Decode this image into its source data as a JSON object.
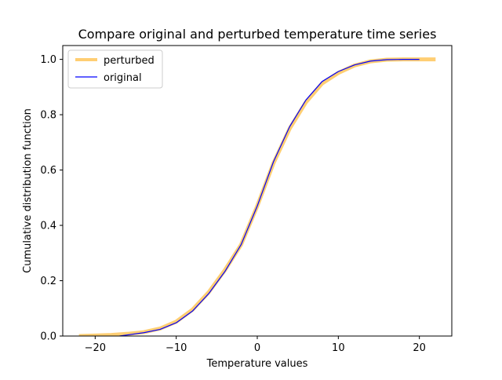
{
  "chart_data": {
    "type": "line",
    "title": "Compare original and perturbed temperature time series",
    "xlabel": "Temperature values",
    "ylabel": "Cumulative distribution function",
    "xlim": [
      -24,
      24
    ],
    "ylim": [
      0,
      1.05
    ],
    "xticks": [
      -20,
      -10,
      0,
      10,
      20
    ],
    "yticks": [
      0.0,
      0.2,
      0.4,
      0.6,
      0.8,
      1.0
    ],
    "xtick_labels": [
      "−20",
      "−10",
      "0",
      "10",
      "20"
    ],
    "ytick_labels": [
      "0.0",
      "0.2",
      "0.4",
      "0.6",
      "0.8",
      "1.0"
    ],
    "grid": false,
    "legend_position": "top-left",
    "series": [
      {
        "name": "perturbed",
        "color": "#ffa500",
        "alpha": 0.55,
        "x": [
          -22,
          -18,
          -16,
          -14,
          -12,
          -10,
          -8,
          -6,
          -4,
          -2,
          0,
          2,
          4,
          6,
          8,
          10,
          12,
          14,
          16,
          18,
          20,
          22
        ],
        "y": [
          0.0,
          0.004,
          0.008,
          0.014,
          0.027,
          0.052,
          0.095,
          0.158,
          0.238,
          0.33,
          0.47,
          0.625,
          0.75,
          0.845,
          0.913,
          0.951,
          0.978,
          0.993,
          0.999,
          1.0,
          1.0,
          1.0
        ]
      },
      {
        "name": "original",
        "color": "#0000ff",
        "x": [
          -17,
          -16,
          -14,
          -12,
          -10,
          -8,
          -6,
          -4,
          -2,
          0,
          2,
          4,
          6,
          8,
          10,
          12,
          14,
          16,
          18,
          20
        ],
        "y": [
          0.0,
          0.004,
          0.012,
          0.024,
          0.048,
          0.09,
          0.153,
          0.233,
          0.33,
          0.47,
          0.63,
          0.757,
          0.853,
          0.92,
          0.956,
          0.98,
          0.994,
          0.999,
          1.0,
          1.0
        ]
      }
    ]
  }
}
